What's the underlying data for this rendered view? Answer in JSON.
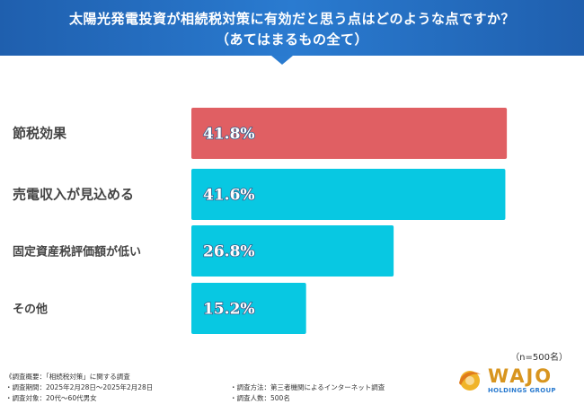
{
  "header": {
    "title_line1": "太陽光発電投資が相続税対策に有効だと思う点はどのような点ですか？",
    "title_line2": "（あてはまるもの全て）"
  },
  "chart_data": {
    "type": "bar",
    "orientation": "horizontal",
    "title": "太陽光発電投資が相続税対策に有効だと思う点はどのような点ですか？（あてはまるもの全て）",
    "categories": [
      "節税効果",
      "売電収入が見込める",
      "固定資産税評価額が低い",
      "その他"
    ],
    "values": [
      41.8,
      41.6,
      26.8,
      15.2
    ],
    "value_labels": [
      "41.8%",
      "41.6%",
      "26.8%",
      "15.2%"
    ],
    "unit": "%",
    "xlim": [
      0,
      45
    ],
    "highlight_color": "#e05f63",
    "bar_color": "#08c8e2"
  },
  "sample_note": "（n=500名）",
  "footer": {
    "overview": "《調査概要：「相続税対策」に関する調査",
    "period": "・調査期間：2025年2月28日～2025年2月28日",
    "target": "・調査対象：20代～60代男女",
    "method": "・調査方法：第三者機関によるインターネット調査",
    "count": "・調査人数：500名"
  },
  "logo": {
    "name": "WAJO",
    "subtitle": "HOLDINGS GROUP"
  }
}
